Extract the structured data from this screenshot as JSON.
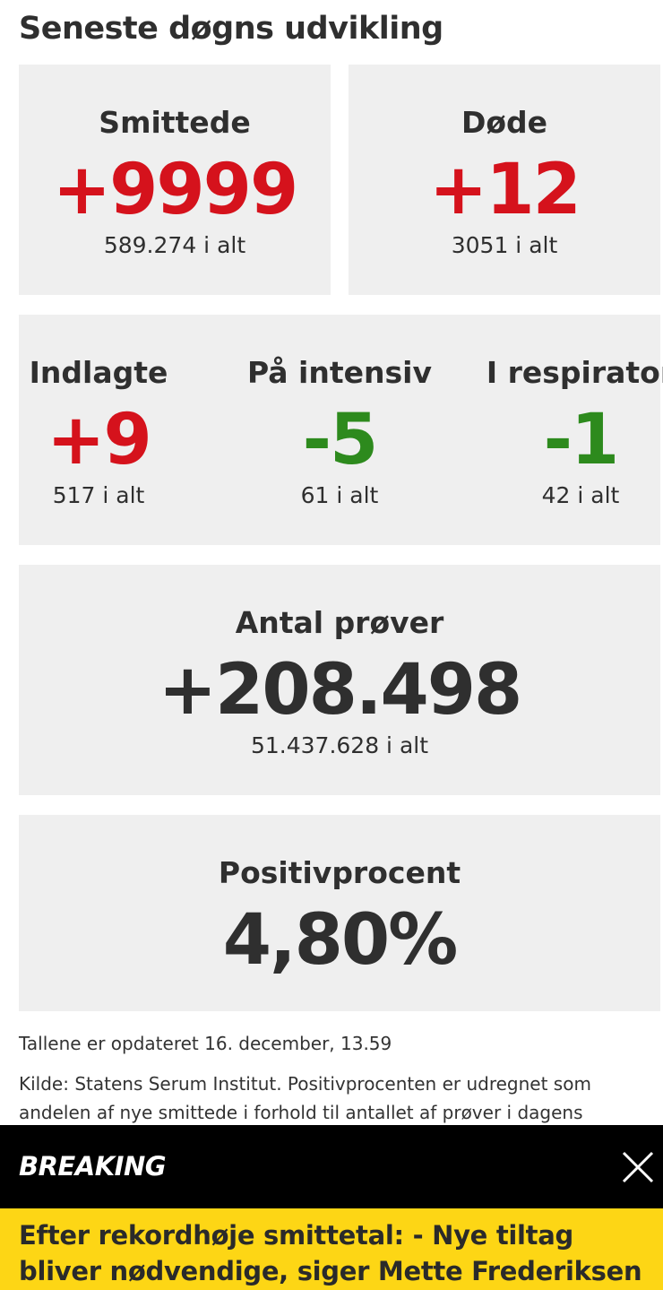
{
  "header": {
    "title": "Seneste døgns udvikling"
  },
  "summary": [
    {
      "label": "Smittede",
      "change": "+9999",
      "total": "589.274 i alt"
    },
    {
      "label": "Døde",
      "change": "+12",
      "total": "3051 i alt"
    }
  ],
  "hospital": [
    {
      "label": "Indlagte",
      "change": "+9",
      "total": "517 i alt"
    },
    {
      "label": "På intensiv",
      "change": "-5",
      "total": "61 i alt"
    },
    {
      "label": "I respirator",
      "change": "-1",
      "total": "42 i alt"
    }
  ],
  "tests": {
    "label": "Antal prøver",
    "change": "+208.498",
    "total": "51.437.628 i alt"
  },
  "positive": {
    "label": "Positivprocent",
    "value": "4,80%"
  },
  "notes": {
    "updated": "Tallene er opdateret 16. december, 13.59",
    "source": "Kilde: Statens Serum Institut. Positivprocenten er udregnet som andelen af nye smittede i forhold til antallet af prøver i dagens"
  },
  "breaking": {
    "label": "BREAKING",
    "headline": "Efter rekordhøje smittetal: - Nye tiltag bliver nødvendige, siger Mette Frederiksen"
  }
}
